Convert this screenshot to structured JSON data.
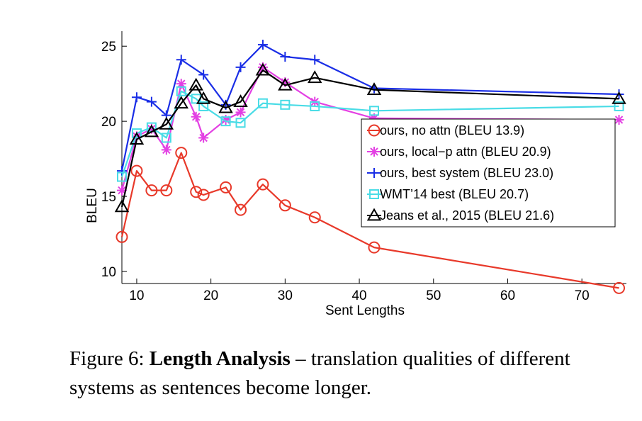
{
  "chart_data": {
    "type": "line",
    "title": "",
    "xlabel": "Sent Lengths",
    "ylabel": "BLEU",
    "xlim": [
      8,
      76
    ],
    "ylim": [
      9.2,
      26
    ],
    "xticks": [
      10,
      20,
      30,
      40,
      50,
      60,
      70
    ],
    "yticks": [
      10,
      15,
      20,
      25
    ],
    "grid": false,
    "legend_position": "right-middle",
    "series": [
      {
        "name": "ours, no attn (BLEU 13.9)",
        "color": "#e8392a",
        "marker": "circle",
        "x": [
          8,
          10,
          12,
          14,
          16,
          18,
          19,
          22,
          24,
          27,
          30,
          34,
          42,
          75
        ],
        "y": [
          12.3,
          16.7,
          15.4,
          15.4,
          17.9,
          15.3,
          15.1,
          15.6,
          14.1,
          15.8,
          14.4,
          13.6,
          11.6,
          8.9
        ]
      },
      {
        "name": "ours, local−p attn (BLEU 20.9)",
        "color": "#e340e3",
        "marker": "asterisk",
        "x": [
          8,
          10,
          12,
          14,
          16,
          18,
          19,
          22,
          24,
          27,
          30,
          34,
          42,
          75
        ],
        "y": [
          15.4,
          19.0,
          19.5,
          18.1,
          22.5,
          20.3,
          18.9,
          20.1,
          20.6,
          23.6,
          22.6,
          21.3,
          20.2,
          20.1
        ]
      },
      {
        "name": "ours, best system (BLEU 23.0)",
        "color": "#1a2ee6",
        "marker": "plus",
        "x": [
          8,
          10,
          12,
          14,
          16,
          19,
          22,
          24,
          27,
          30,
          34,
          42,
          75
        ],
        "y": [
          16.7,
          21.6,
          21.3,
          20.4,
          24.1,
          23.1,
          21.1,
          23.6,
          25.1,
          24.3,
          24.1,
          22.2,
          21.8
        ]
      },
      {
        "name": "WMT’14 best (BLEU 20.7)",
        "color": "#49dce6",
        "marker": "square",
        "x": [
          8,
          10,
          12,
          14,
          16,
          18,
          19,
          22,
          24,
          27,
          30,
          34,
          42,
          75
        ],
        "y": [
          16.3,
          19.2,
          19.6,
          18.9,
          22.0,
          21.5,
          21.0,
          20.0,
          19.9,
          21.2,
          21.1,
          21.0,
          20.7,
          21.0
        ]
      },
      {
        "name": "Jeans et al., 2015 (BLEU 21.6)",
        "color": "#000000",
        "marker": "triangle",
        "x": [
          8,
          10,
          12,
          14,
          16,
          18,
          19,
          22,
          24,
          27,
          30,
          34,
          42,
          75
        ],
        "y": [
          14.3,
          18.8,
          19.3,
          19.8,
          21.2,
          22.4,
          21.5,
          20.9,
          21.3,
          23.4,
          22.4,
          22.9,
          22.1,
          21.5
        ]
      }
    ]
  },
  "caption": {
    "prefix": "Figure 6: ",
    "bold": "Length Analysis",
    "rest": " – translation qualities of different systems as sentences become longer."
  }
}
